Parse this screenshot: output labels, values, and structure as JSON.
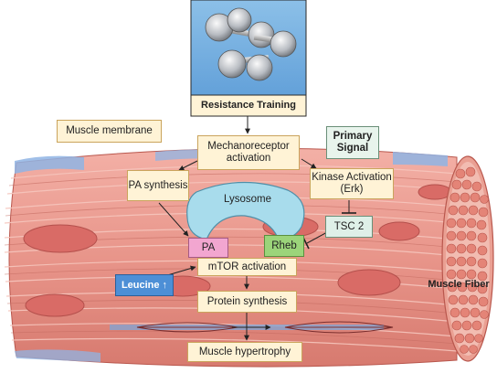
{
  "title_box": "Resistance Training",
  "labels": {
    "muscle_membrane": "Muscle membrane",
    "mechanoreceptor": "Mechanoreceptor activation",
    "primary_signal": "Primary Signal",
    "pa_synthesis": "PA synthesis",
    "kinase": "Kinase Activation (Erk)",
    "lysosome": "Lysosome",
    "tsc2": "TSC 2",
    "pa": "PA",
    "rheb": "Rheb",
    "leucine": "Leucine ↑",
    "mtor": "mTOR activation",
    "protein_synthesis": "Protein synthesis",
    "muscle_fiber": "Muscle Fiber",
    "hypertrophy": "Muscle hypertrophy"
  },
  "colors": {
    "muscle": "#e8958a",
    "muscle_dark": "#c8675c",
    "training_bg": "#6aa8dc",
    "cream_box": "#fff3d6",
    "pa_box": "#f2a6d0",
    "rheb_box": "#9bd47a",
    "tsc_box": "#dff0e8",
    "leucine_box": "#4d8fd6",
    "lysosome": "#a8dcec"
  }
}
